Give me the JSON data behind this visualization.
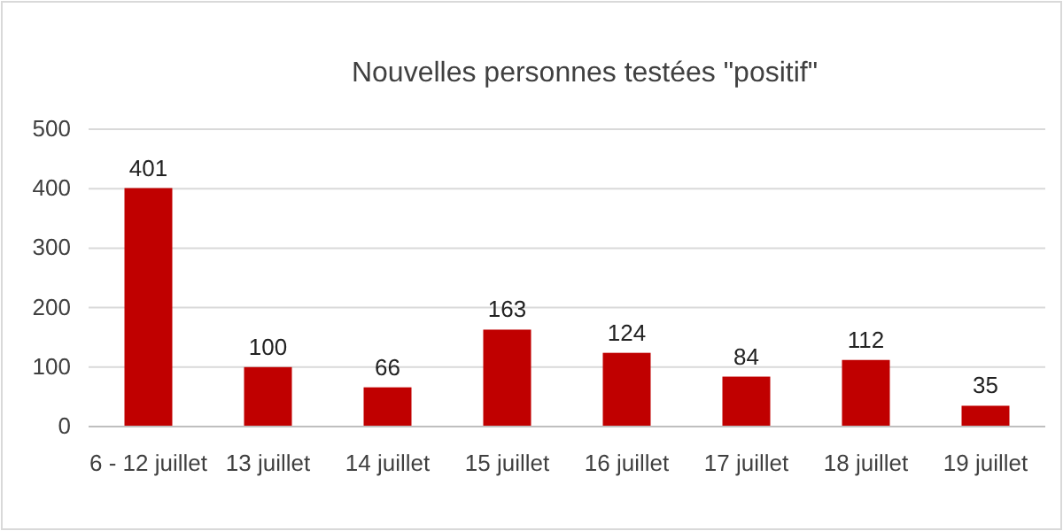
{
  "chart_data": {
    "type": "bar",
    "title": "Nouvelles personnes testées \"positif\"",
    "categories": [
      "6 - 12 juillet",
      "13 juillet",
      "14 juillet",
      "15 juillet",
      "16 juillet",
      "17 juillet",
      "18 juillet",
      "19 juillet"
    ],
    "values": [
      401,
      100,
      66,
      163,
      124,
      84,
      112,
      35
    ],
    "color": "#c00000",
    "ylim": [
      0,
      500
    ],
    "yticks": [
      0,
      100,
      200,
      300,
      400,
      500
    ],
    "grid": "y",
    "data_labels": true
  }
}
